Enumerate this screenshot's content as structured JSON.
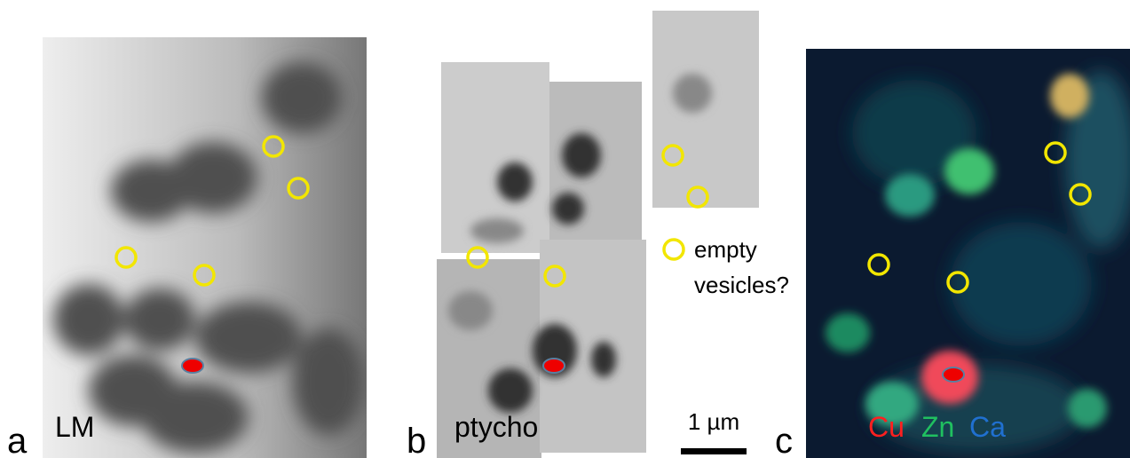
{
  "panels": [
    {
      "letter": "a",
      "label": "LM"
    },
    {
      "letter": "b",
      "label": "ptycho"
    },
    {
      "letter": "c",
      "elements": [
        "Cu",
        "Zn",
        "Ca"
      ]
    }
  ],
  "legend": {
    "line1": "empty",
    "line2": "vesicles?"
  },
  "scale_bar": "1 µm"
}
